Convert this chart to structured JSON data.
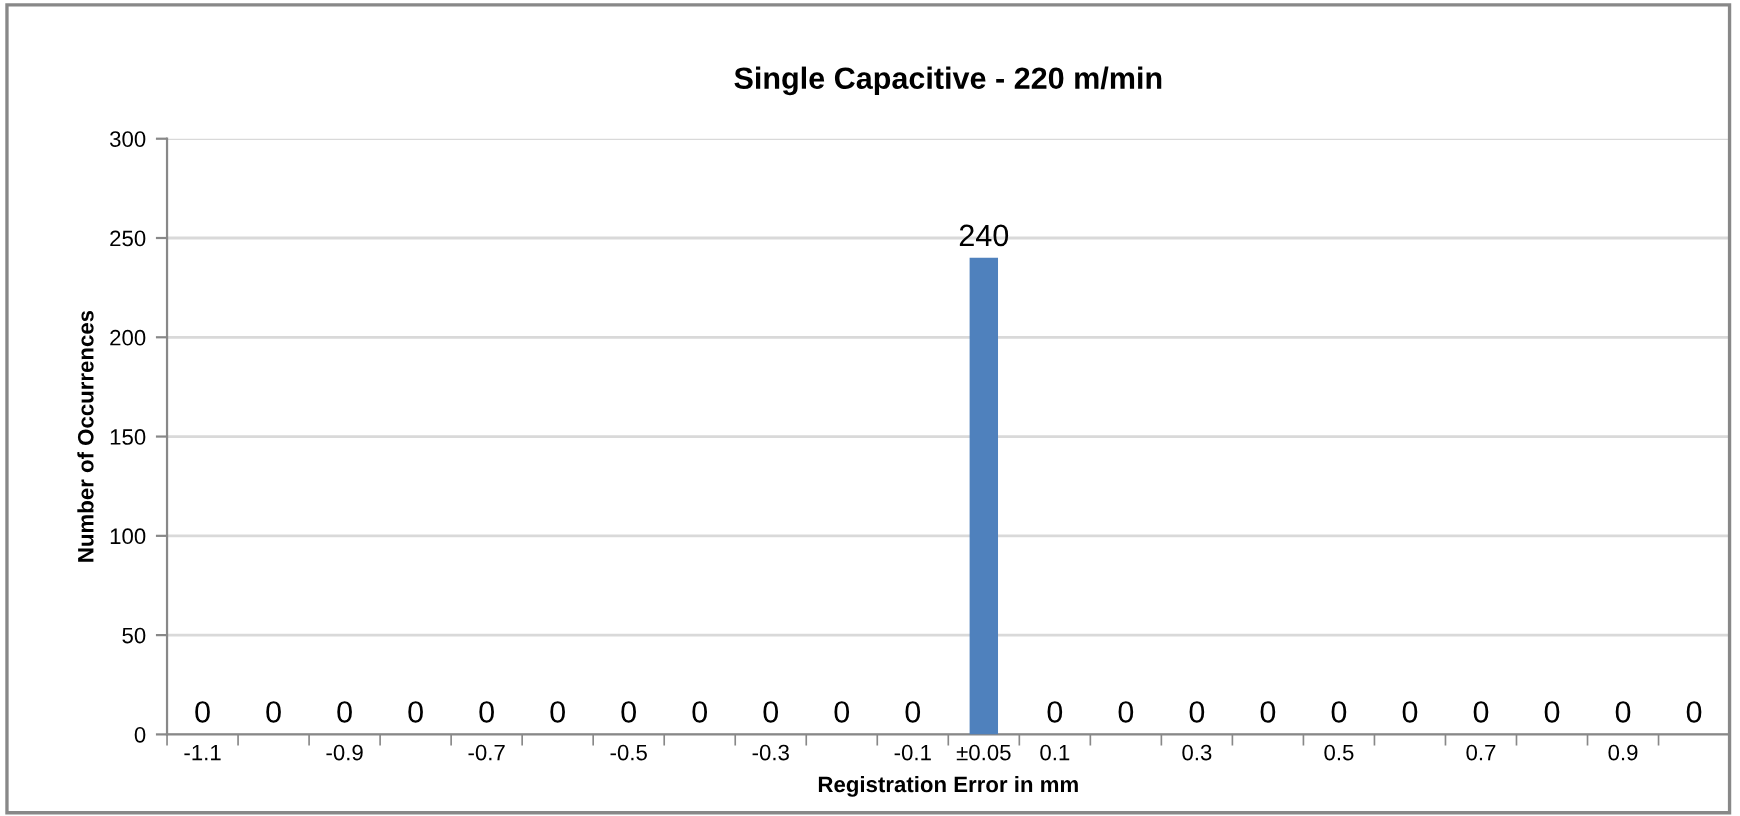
{
  "chart_data": {
    "type": "bar",
    "title": "Single Capacitive - 220 m/min",
    "xlabel": "Registration Error in mm",
    "ylabel": "Number of Occurrences",
    "categories": [
      "-1.1",
      null,
      "-0.9",
      null,
      "-0.7",
      null,
      "-0.5",
      null,
      "-0.3",
      null,
      "-0.1",
      "±0.05",
      "0.1",
      null,
      "0.3",
      null,
      "0.5",
      null,
      "0.7",
      null,
      "0.9",
      null
    ],
    "values": [
      0,
      0,
      0,
      0,
      0,
      0,
      0,
      0,
      0,
      0,
      0,
      240,
      0,
      0,
      0,
      0,
      0,
      0,
      0,
      0,
      0,
      0
    ],
    "color": "#4f81bd",
    "ylim": [
      0,
      300
    ],
    "yticks": [
      0,
      50,
      100,
      150,
      200,
      250,
      300
    ],
    "grid": "y",
    "data_labels": true
  }
}
